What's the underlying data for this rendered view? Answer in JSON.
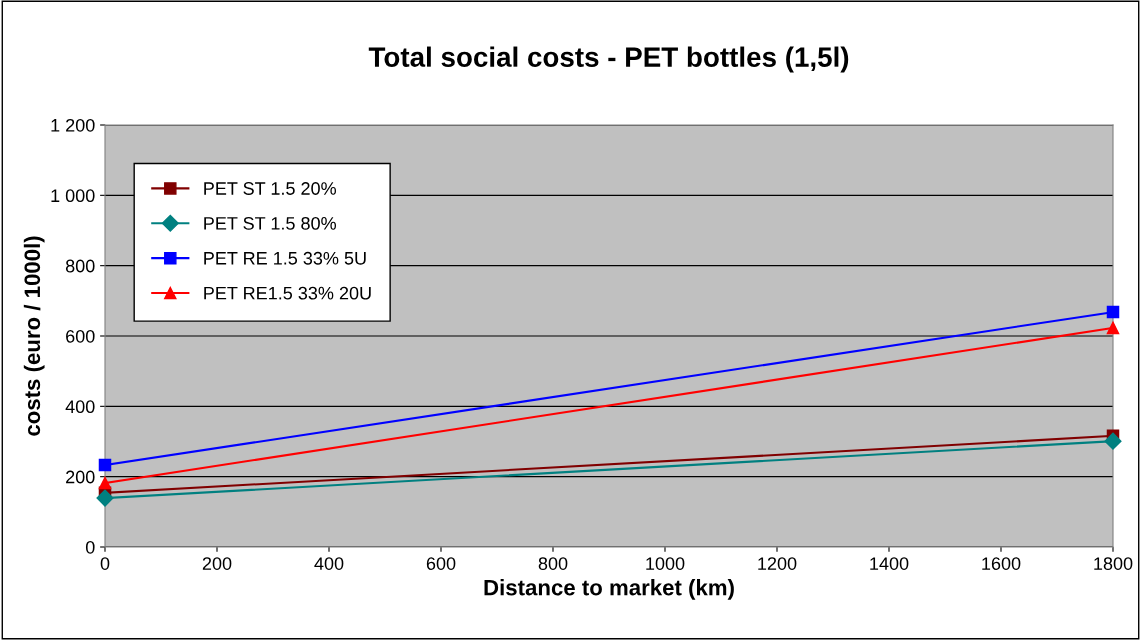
{
  "chart_data": {
    "type": "line",
    "title": "Total social costs - PET bottles (1,5l)",
    "xlabel": "Distance to market (km)",
    "ylabel": "costs (euro / 1000l)",
    "x": [
      0,
      1800
    ],
    "series": [
      {
        "name": "PET ST 1.5 20%",
        "color": "#800000",
        "values": [
          154,
          316
        ],
        "marker": "square"
      },
      {
        "name": "PET ST 1.5 80%",
        "color": "#008080",
        "values": [
          139,
          301
        ],
        "marker": "diamond"
      },
      {
        "name": "PET RE 1.5 33% 5U",
        "color": "#0000ff",
        "values": [
          233,
          668
        ],
        "marker": "square"
      },
      {
        "name": "PET RE1.5 33% 20U",
        "color": "#ff0000",
        "values": [
          182,
          623
        ],
        "marker": "triangle"
      }
    ],
    "xlim": [
      0,
      1800
    ],
    "xticks": [
      0,
      200,
      400,
      600,
      800,
      1000,
      1200,
      1400,
      1600,
      1800
    ],
    "ylim": [
      0,
      1200
    ],
    "yticks": [
      0,
      200,
      400,
      600,
      800,
      {
        "value": 1000,
        "label": "1 000"
      },
      {
        "value": 1200,
        "label": "1 200"
      }
    ],
    "grid": "y",
    "legend": "top left",
    "line_style": "solid"
  }
}
